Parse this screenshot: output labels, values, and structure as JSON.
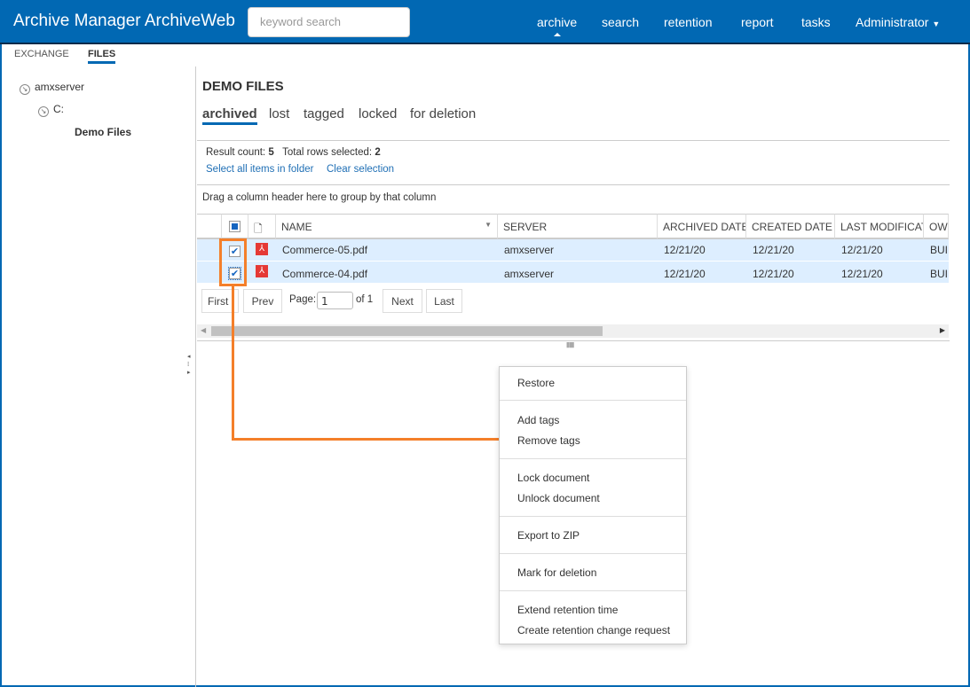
{
  "header": {
    "title": "Archive Manager ArchiveWeb",
    "search_placeholder": "keyword search",
    "nav": [
      "archive",
      "search",
      "retention",
      "report",
      "tasks",
      "Administrator"
    ]
  },
  "source_tabs": [
    "EXCHANGE",
    "FILES"
  ],
  "tree": {
    "root": "amxserver",
    "drive": "C:",
    "folder": "Demo Files"
  },
  "page": {
    "title": "DEMO FILES",
    "tabs": [
      "archived",
      "lost",
      "tagged",
      "locked",
      "for deletion"
    ],
    "result_count_label": "Result count:",
    "result_count": "5",
    "selected_label": "Total rows selected:",
    "selected": "2",
    "select_all": "Select all items in folder",
    "clear_selection": "Clear selection",
    "group_hint": "Drag a column header here to group by that column"
  },
  "grid": {
    "columns": [
      "NAME",
      "SERVER",
      "ARCHIVED DATE",
      "CREATED DATE",
      "LAST MODIFICATION",
      "OW"
    ],
    "rows": [
      {
        "name": "Commerce-05.pdf",
        "server": "amxserver",
        "archived": "12/21/20",
        "created": "12/21/20",
        "modified": "12/21/20",
        "owner": "BUILTIN",
        "checked": true
      },
      {
        "name": "Commerce-04.pdf",
        "server": "amxserver",
        "archived": "12/21/20",
        "created": "12/21/20",
        "modified": "12/21/20",
        "owner": "BUILTIN",
        "checked": true
      }
    ]
  },
  "pager": {
    "first": "First",
    "prev": "Prev",
    "page_label": "Page:",
    "page": "1",
    "of": "of 1",
    "next": "Next",
    "last": "Last"
  },
  "context_menu": [
    "Restore",
    "Add tags",
    "Remove tags",
    "Lock document",
    "Unlock document",
    "Export to ZIP",
    "Mark for deletion",
    "Extend retention time",
    "Create retention change request"
  ],
  "colors": {
    "brand": "#0168b3",
    "selected_row": "#ddeeff",
    "annotation": "#f47f2a"
  }
}
